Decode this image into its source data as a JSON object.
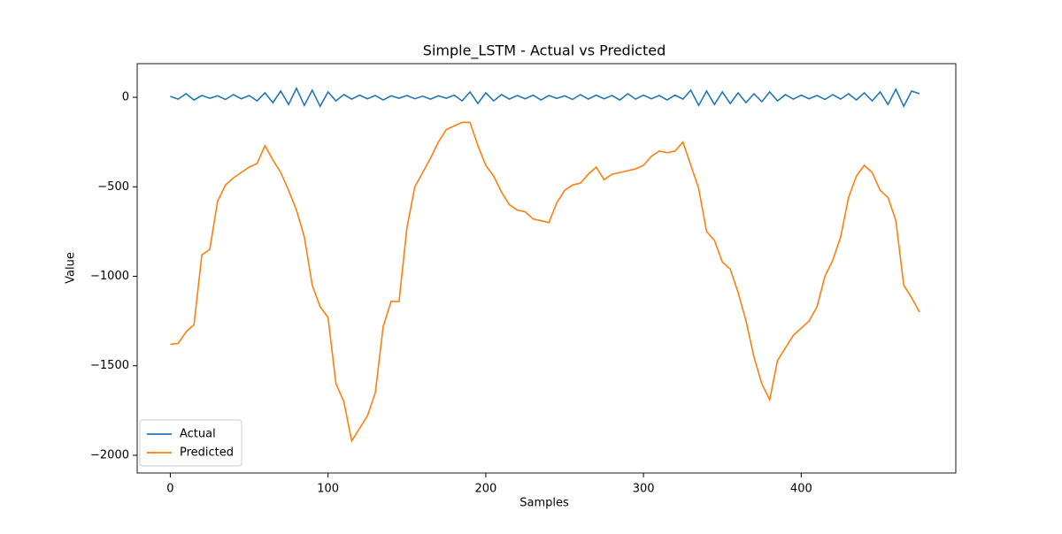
{
  "chart_data": {
    "type": "line",
    "title": "Simple_LSTM - Actual vs Predicted",
    "x_label": "Samples",
    "y_label": "Value",
    "x": [
      0,
      5,
      10,
      15,
      20,
      25,
      30,
      35,
      40,
      45,
      50,
      55,
      60,
      65,
      70,
      75,
      80,
      85,
      90,
      95,
      100,
      105,
      110,
      115,
      120,
      125,
      130,
      135,
      140,
      145,
      150,
      155,
      160,
      165,
      170,
      175,
      180,
      185,
      190,
      195,
      200,
      205,
      210,
      215,
      220,
      225,
      230,
      235,
      240,
      245,
      250,
      255,
      260,
      265,
      270,
      275,
      280,
      285,
      290,
      295,
      300,
      305,
      310,
      315,
      320,
      325,
      330,
      335,
      340,
      345,
      350,
      355,
      360,
      365,
      370,
      375,
      380,
      385,
      390,
      395,
      400,
      405,
      410,
      415,
      420,
      425,
      430,
      435,
      440,
      445,
      450,
      455,
      460,
      465,
      470,
      475
    ],
    "series": [
      {
        "name": "Actual",
        "color": "#1f77b4",
        "values": [
          5,
          -10,
          20,
          -15,
          10,
          -5,
          8,
          -12,
          15,
          -8,
          10,
          -20,
          25,
          -30,
          35,
          -40,
          50,
          -45,
          40,
          -50,
          30,
          -20,
          15,
          -10,
          12,
          -8,
          10,
          -15,
          8,
          -5,
          10,
          -8,
          6,
          -10,
          8,
          -5,
          12,
          -20,
          30,
          -35,
          25,
          -20,
          15,
          -10,
          10,
          -8,
          12,
          -15,
          10,
          -6,
          8,
          -12,
          15,
          -10,
          12,
          -8,
          10,
          -15,
          20,
          -10,
          12,
          -8,
          10,
          -15,
          12,
          -10,
          40,
          -45,
          35,
          -40,
          30,
          -35,
          25,
          -30,
          20,
          -25,
          30,
          -20,
          15,
          -10,
          12,
          -8,
          10,
          -12,
          15,
          -10,
          20,
          -15,
          25,
          -20,
          30,
          -40,
          45,
          -50,
          35,
          20
        ]
      },
      {
        "name": "Predicted",
        "color": "#ff7f0e",
        "values": [
          -1380,
          -1375,
          -1310,
          -1270,
          -880,
          -850,
          -580,
          -490,
          -450,
          -420,
          -390,
          -370,
          -270,
          -350,
          -420,
          -520,
          -630,
          -780,
          -1050,
          -1170,
          -1230,
          -1600,
          -1700,
          -1920,
          -1850,
          -1780,
          -1650,
          -1280,
          -1140,
          -1140,
          -730,
          -500,
          -420,
          -340,
          -250,
          -180,
          -160,
          -140,
          -140,
          -270,
          -380,
          -440,
          -530,
          -600,
          -630,
          -640,
          -680,
          -690,
          -700,
          -590,
          -520,
          -490,
          -480,
          -430,
          -390,
          -460,
          -430,
          -420,
          -410,
          -400,
          -380,
          -330,
          -300,
          -310,
          -300,
          -250,
          -380,
          -510,
          -750,
          -800,
          -920,
          -960,
          -1090,
          -1250,
          -1450,
          -1600,
          -1690,
          -1470,
          -1400,
          -1330,
          -1290,
          -1250,
          -1170,
          -1000,
          -910,
          -780,
          -560,
          -440,
          -380,
          -420,
          -520,
          -560,
          -690,
          -1050,
          -1120,
          -1200
        ]
      }
    ],
    "xlim": [
      -21,
      498
    ],
    "ylim": [
      -2099,
      188
    ],
    "xticks": [
      0,
      100,
      200,
      300,
      400
    ],
    "yticks": [
      0,
      {
        "value": -500,
        "label": "−500"
      },
      {
        "value": -1000,
        "label": "−1000"
      },
      {
        "value": -1500,
        "label": "−1500"
      },
      {
        "value": -2000,
        "label": "−2000"
      }
    ],
    "legend": "lower left"
  }
}
